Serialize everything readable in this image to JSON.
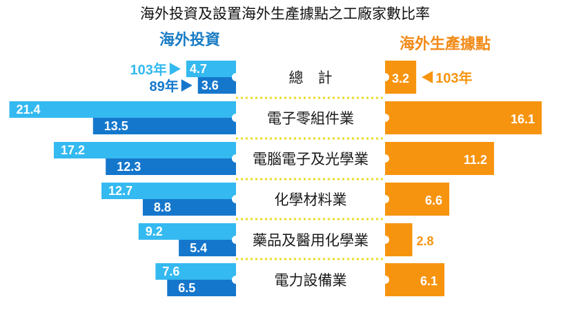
{
  "chart_data": {
    "type": "bar",
    "title": "海外投資及設置海外生產據點之工廠家數比率",
    "left_header": "海外投資",
    "right_header": "海外生產據點",
    "categories": [
      "總　計",
      "電子零組件業",
      "電腦電子及光學業",
      "化學材料業",
      "藥品及醫用化學業",
      "電力設備業"
    ],
    "overseas_investment": {
      "series": [
        {
          "name": "103年",
          "values": [
            4.7,
            21.4,
            17.2,
            12.7,
            9.2,
            7.6
          ]
        },
        {
          "name": "89年",
          "values": [
            3.6,
            13.5,
            12.3,
            8.8,
            5.4,
            6.5
          ]
        }
      ]
    },
    "overseas_production": {
      "series": [
        {
          "name": "103年",
          "values": [
            3.2,
            16.1,
            11.2,
            6.6,
            2.8,
            6.1
          ]
        }
      ]
    }
  },
  "colors": {
    "light_blue": "#34b9f0",
    "dark_blue": "#1577cc",
    "orange": "#f7940f",
    "header_blue": "#1a7cc4",
    "header_orange": "#f28a17",
    "dots": "#e8dc22"
  }
}
